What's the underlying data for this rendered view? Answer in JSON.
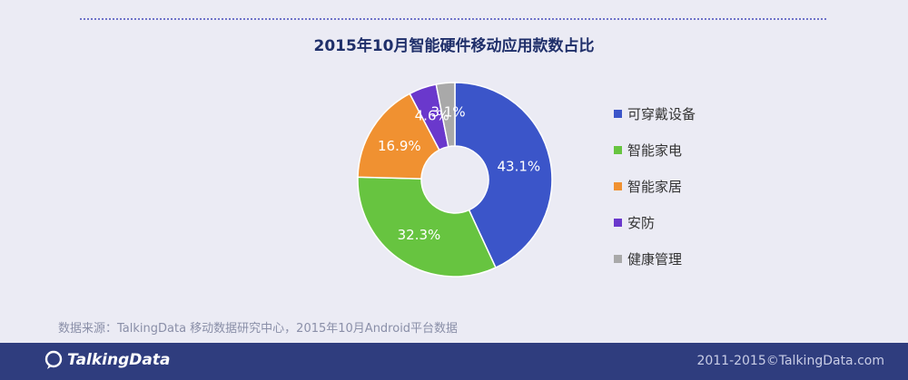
{
  "chart_data": {
    "type": "pie",
    "title": "2015年10月智能硬件移动应用款数占比",
    "categories": [
      "可穿戴设备",
      "智能家电",
      "智能家居",
      "安防",
      "健康管理"
    ],
    "values": [
      43.1,
      32.3,
      16.9,
      4.6,
      3.1
    ],
    "labels": [
      "43.1%",
      "32.3%",
      "16.9%",
      "4.6%",
      "3.1%"
    ],
    "colors": [
      "#3b55c9",
      "#67c440",
      "#f09131",
      "#6a38cc",
      "#a9a9a9"
    ],
    "donut": true,
    "legend_position": "right"
  },
  "source_text": "数据来源：TalkingData 移动数据研究中心，2015年10月Android平台数据",
  "footer": {
    "logo_text": "TalkingData",
    "copyright": "2011-2015©TalkingData.com"
  }
}
